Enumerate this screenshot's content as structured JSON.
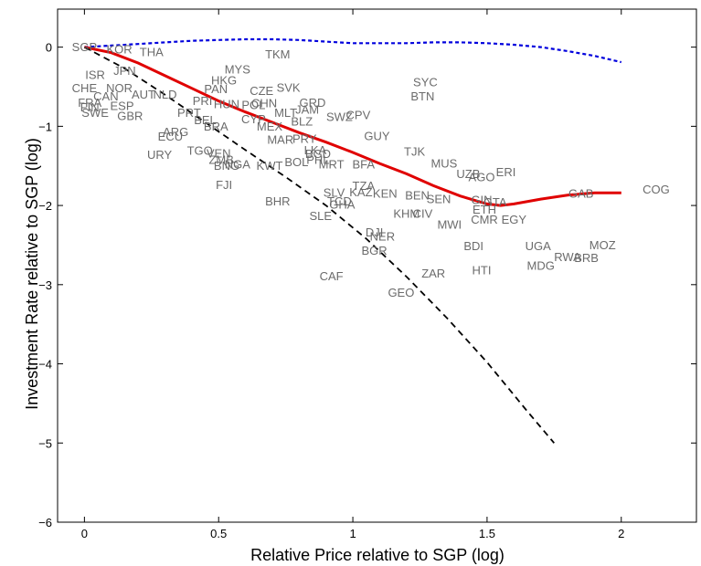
{
  "chart_data": {
    "type": "scatter",
    "title": "",
    "xlabel": "Relative Price relative to SGP (log)",
    "ylabel": "Investment Rate relative to SGP (log)",
    "xlim": [
      -0.1,
      2.28
    ],
    "ylim": [
      -6,
      0.48
    ],
    "xticks": [
      0,
      0.5,
      1,
      1.5,
      2
    ],
    "xtick_labels": [
      "0",
      "0.5",
      "1",
      "1.5",
      "2"
    ],
    "yticks": [
      0,
      -1,
      -2,
      -3,
      -4,
      -5,
      -6
    ],
    "ytick_labels": [
      "0",
      "−1",
      "−2",
      "−3",
      "−4",
      "−5",
      "−6"
    ],
    "grid": false,
    "points": [
      {
        "label": "SGP",
        "x": 0.0,
        "y": 0.0
      },
      {
        "label": "KOR",
        "x": 0.13,
        "y": -0.03
      },
      {
        "label": "THA",
        "x": 0.25,
        "y": -0.06
      },
      {
        "label": "TKM",
        "x": 0.72,
        "y": -0.09
      },
      {
        "label": "ISR",
        "x": 0.04,
        "y": -0.35
      },
      {
        "label": "JPN",
        "x": 0.15,
        "y": -0.3
      },
      {
        "label": "MYS",
        "x": 0.57,
        "y": -0.28
      },
      {
        "label": "HKG",
        "x": 0.52,
        "y": -0.42
      },
      {
        "label": "CHE",
        "x": 0.0,
        "y": -0.52
      },
      {
        "label": "NOR",
        "x": 0.13,
        "y": -0.52
      },
      {
        "label": "PAN",
        "x": 0.49,
        "y": -0.53
      },
      {
        "label": "CZE",
        "x": 0.66,
        "y": -0.55
      },
      {
        "label": "SVK",
        "x": 0.76,
        "y": -0.51
      },
      {
        "label": "SYC",
        "x": 1.27,
        "y": -0.44
      },
      {
        "label": "BTN",
        "x": 1.26,
        "y": -0.62
      },
      {
        "label": "CAN",
        "x": 0.08,
        "y": -0.62
      },
      {
        "label": "AUT",
        "x": 0.22,
        "y": -0.6
      },
      {
        "label": "NLD",
        "x": 0.3,
        "y": -0.6
      },
      {
        "label": "FRA",
        "x": 0.02,
        "y": -0.7
      },
      {
        "label": "FIN",
        "x": 0.02,
        "y": -0.76
      },
      {
        "label": "ESP",
        "x": 0.14,
        "y": -0.74
      },
      {
        "label": "SWE",
        "x": 0.04,
        "y": -0.83
      },
      {
        "label": "GBR",
        "x": 0.17,
        "y": -0.87
      },
      {
        "label": "PRI",
        "x": 0.44,
        "y": -0.68
      },
      {
        "label": "HUN",
        "x": 0.53,
        "y": -0.72
      },
      {
        "label": "CHN",
        "x": 0.67,
        "y": -0.71
      },
      {
        "label": "POL",
        "x": 0.63,
        "y": -0.73
      },
      {
        "label": "PRT",
        "x": 0.39,
        "y": -0.83
      },
      {
        "label": "MLT",
        "x": 0.75,
        "y": -0.83
      },
      {
        "label": "GRD",
        "x": 0.85,
        "y": -0.7
      },
      {
        "label": "JAM",
        "x": 0.83,
        "y": -0.79
      },
      {
        "label": "SWZ",
        "x": 0.95,
        "y": -0.88
      },
      {
        "label": "CPV",
        "x": 1.02,
        "y": -0.86
      },
      {
        "label": "CYP",
        "x": 0.63,
        "y": -0.91
      },
      {
        "label": "BLZ",
        "x": 0.81,
        "y": -0.94
      },
      {
        "label": "BEL",
        "x": 0.45,
        "y": -0.92
      },
      {
        "label": "ARG",
        "x": 0.34,
        "y": -1.07
      },
      {
        "label": "BRA",
        "x": 0.49,
        "y": -1.0
      },
      {
        "label": "MEX",
        "x": 0.69,
        "y": -1.0
      },
      {
        "label": "ECU",
        "x": 0.32,
        "y": -1.13
      },
      {
        "label": "GUY",
        "x": 1.09,
        "y": -1.12
      },
      {
        "label": "URY",
        "x": 0.28,
        "y": -1.36
      },
      {
        "label": "TGO",
        "x": 0.43,
        "y": -1.31
      },
      {
        "label": "VEN",
        "x": 0.5,
        "y": -1.34
      },
      {
        "label": "MAR",
        "x": 0.73,
        "y": -1.17
      },
      {
        "label": "PRY",
        "x": 0.82,
        "y": -1.16
      },
      {
        "label": "TJK",
        "x": 1.23,
        "y": -1.32
      },
      {
        "label": "MUS",
        "x": 1.34,
        "y": -1.47
      },
      {
        "label": "UZB",
        "x": 1.43,
        "y": -1.6
      },
      {
        "label": "AGO",
        "x": 1.48,
        "y": -1.64
      },
      {
        "label": "ERI",
        "x": 1.57,
        "y": -1.58
      },
      {
        "label": "BGD",
        "x": 0.87,
        "y": -1.35
      },
      {
        "label": "ZMB",
        "x": 0.51,
        "y": -1.42
      },
      {
        "label": "BOL",
        "x": 0.79,
        "y": -1.45
      },
      {
        "label": "KWT",
        "x": 0.69,
        "y": -1.5
      },
      {
        "label": "PHL",
        "x": 0.87,
        "y": -1.42
      },
      {
        "label": "LKA",
        "x": 0.86,
        "y": -1.3
      },
      {
        "label": "MRT",
        "x": 0.92,
        "y": -1.48
      },
      {
        "label": "BFA",
        "x": 1.04,
        "y": -1.48
      },
      {
        "label": "BNG",
        "x": 0.53,
        "y": -1.5
      },
      {
        "label": "NGA",
        "x": 0.57,
        "y": -1.48
      },
      {
        "label": "FJI",
        "x": 0.52,
        "y": -1.74
      },
      {
        "label": "BHR",
        "x": 0.72,
        "y": -1.95
      },
      {
        "label": "SLV",
        "x": 0.93,
        "y": -1.84
      },
      {
        "label": "TZA",
        "x": 1.04,
        "y": -1.75
      },
      {
        "label": "KAZ",
        "x": 1.03,
        "y": -1.83
      },
      {
        "label": "TCD",
        "x": 0.95,
        "y": -1.95
      },
      {
        "label": "GHA",
        "x": 0.96,
        "y": -1.99
      },
      {
        "label": "SLE",
        "x": 0.88,
        "y": -2.13
      },
      {
        "label": "KEN",
        "x": 1.12,
        "y": -1.85
      },
      {
        "label": "GIN",
        "x": 1.48,
        "y": -1.93
      },
      {
        "label": "ETH",
        "x": 1.49,
        "y": -2.05
      },
      {
        "label": "GTA",
        "x": 1.53,
        "y": -1.96
      },
      {
        "label": "GAB",
        "x": 1.85,
        "y": -1.85
      },
      {
        "label": "COG",
        "x": 2.13,
        "y": -1.8
      },
      {
        "label": "BEN",
        "x": 1.24,
        "y": -1.87
      },
      {
        "label": "SEN",
        "x": 1.32,
        "y": -1.92
      },
      {
        "label": "KHM",
        "x": 1.2,
        "y": -2.1
      },
      {
        "label": "CIV",
        "x": 1.26,
        "y": -2.1
      },
      {
        "label": "MWI",
        "x": 1.36,
        "y": -2.24
      },
      {
        "label": "CMR",
        "x": 1.49,
        "y": -2.18
      },
      {
        "label": "EGY",
        "x": 1.6,
        "y": -2.18
      },
      {
        "label": "DJI",
        "x": 1.08,
        "y": -2.34
      },
      {
        "label": "NER",
        "x": 1.11,
        "y": -2.39
      },
      {
        "label": "BGR",
        "x": 1.08,
        "y": -2.57
      },
      {
        "label": "BDI",
        "x": 1.45,
        "y": -2.51
      },
      {
        "label": "UGA",
        "x": 1.69,
        "y": -2.51
      },
      {
        "label": "MOZ",
        "x": 1.93,
        "y": -2.5
      },
      {
        "label": "RWA",
        "x": 1.8,
        "y": -2.65
      },
      {
        "label": "BRB",
        "x": 1.87,
        "y": -2.66
      },
      {
        "label": "MDG",
        "x": 1.7,
        "y": -2.76
      },
      {
        "label": "HTI",
        "x": 1.48,
        "y": -2.82
      },
      {
        "label": "ZAR",
        "x": 1.3,
        "y": -2.86
      },
      {
        "label": "CAF",
        "x": 0.92,
        "y": -2.89
      },
      {
        "label": "GEO",
        "x": 1.18,
        "y": -3.1
      }
    ],
    "lines": [
      {
        "style": "dashed-blue",
        "color": "#0000dd",
        "x": [
          0,
          0.1,
          0.2,
          0.3,
          0.4,
          0.5,
          0.6,
          0.7,
          0.8,
          0.9,
          1.0,
          1.1,
          1.2,
          1.3,
          1.4,
          1.5,
          1.6,
          1.7,
          1.8,
          1.9,
          2.0
        ],
        "y": [
          0,
          0.02,
          0.04,
          0.06,
          0.08,
          0.09,
          0.1,
          0.1,
          0.09,
          0.07,
          0.05,
          0.05,
          0.05,
          0.06,
          0.06,
          0.05,
          0.03,
          0.0,
          -0.05,
          -0.11,
          -0.19
        ]
      },
      {
        "style": "solid-red",
        "color": "#e00000",
        "x": [
          0,
          0.1,
          0.2,
          0.3,
          0.4,
          0.5,
          0.6,
          0.7,
          0.8,
          0.9,
          1.0,
          1.1,
          1.2,
          1.3,
          1.4,
          1.5,
          1.55,
          1.6,
          1.7,
          1.8,
          1.9,
          2.0
        ],
        "y": [
          0,
          -0.07,
          -0.2,
          -0.36,
          -0.52,
          -0.68,
          -0.82,
          -0.95,
          -1.08,
          -1.2,
          -1.33,
          -1.47,
          -1.6,
          -1.75,
          -1.88,
          -1.98,
          -2.0,
          -1.98,
          -1.92,
          -1.87,
          -1.84,
          -1.84
        ]
      },
      {
        "style": "dashed-black",
        "color": "#000000",
        "x": [
          0,
          0.15,
          0.3,
          0.45,
          0.6,
          0.75,
          0.9,
          1.05,
          1.2,
          1.35,
          1.5,
          1.65,
          1.75
        ],
        "y": [
          0,
          -0.27,
          -0.6,
          -0.95,
          -1.3,
          -1.64,
          -2.0,
          -2.42,
          -2.9,
          -3.42,
          -3.98,
          -4.6,
          -5.0
        ]
      }
    ]
  }
}
